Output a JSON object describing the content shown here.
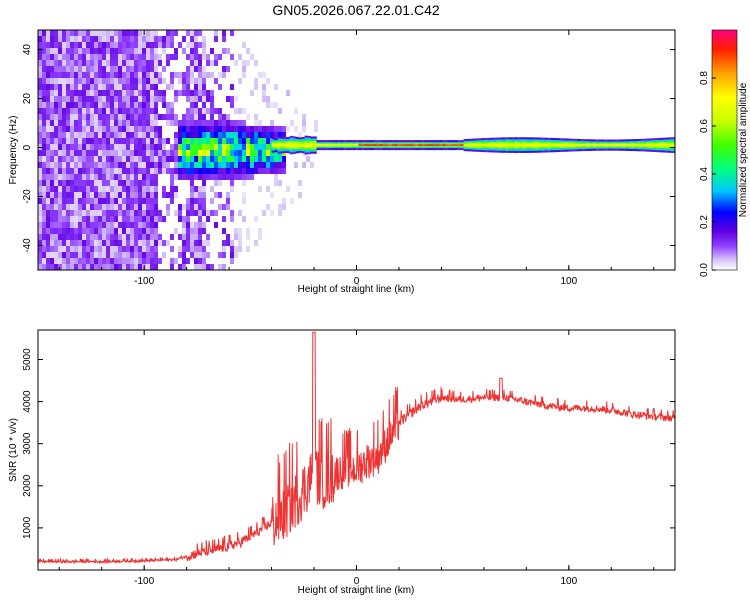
{
  "page": {
    "title": "GN05.2026.067.22.01.C42"
  },
  "chart_data": [
    {
      "type": "heatmap",
      "title": "GN05.2026.067.22.01.C42",
      "xlabel": "Height of straight line (km)",
      "ylabel": "Frequency (Hz)",
      "xlim": [
        -150,
        150
      ],
      "ylim": [
        -50,
        48
      ],
      "xticks": [
        -100,
        0,
        100
      ],
      "xtick_labels": [
        "-100",
        "0",
        "100"
      ],
      "yticks": [
        -40,
        -20,
        0,
        20,
        40
      ],
      "ytick_labels": [
        "-40",
        "-20",
        "0",
        "20",
        "40"
      ],
      "colorbar": {
        "label": "Normalized spectral amplitude",
        "range": [
          0,
          1
        ],
        "ticks": [
          0.0,
          0.2,
          0.4,
          0.6,
          0.8
        ],
        "tick_labels": [
          "0.0",
          "0.2",
          "0.4",
          "0.6",
          "0.8"
        ],
        "colors": [
          "#ffffff",
          "#d8c8f8",
          "#9040ff",
          "#6000e0",
          "#0000ff",
          "#00c8ff",
          "#00ff80",
          "#40ff00",
          "#c8ff00",
          "#ffff00",
          "#ffa000",
          "#ff2000",
          "#ff0080"
        ]
      },
      "regions": [
        {
          "name": "broadband noise",
          "x_range": [
            -150,
            -58
          ],
          "freq_range": [
            -50,
            48
          ],
          "amplitude": 0.15
        },
        {
          "name": "onset",
          "x_range": [
            -85,
            -35
          ],
          "freq_range": [
            -12,
            12
          ],
          "amplitude": 0.45
        },
        {
          "name": "narrow line",
          "x_range": [
            -35,
            150
          ],
          "freq_center": 1,
          "amplitude": 0.9
        }
      ]
    },
    {
      "type": "line",
      "xlabel": "Height of straight line (km)",
      "ylabel": "SNR (10 * v/v)",
      "xlim": [
        -150,
        150
      ],
      "ylim": [
        0,
        5700
      ],
      "xticks": [
        -100,
        0,
        100
      ],
      "xtick_labels": [
        "-100",
        "0",
        "100"
      ],
      "yticks": [
        1000,
        2000,
        3000,
        4000,
        5000
      ],
      "ytick_labels": [
        "1000",
        "2000",
        "3000",
        "4000",
        "5000"
      ],
      "series": [
        {
          "name": "SNR",
          "color": "#ee3333",
          "x": [
            -150,
            -120,
            -100,
            -85,
            -75,
            -65,
            -55,
            -45,
            -35,
            -25,
            -20,
            -15,
            -10,
            -5,
            0,
            5,
            10,
            15,
            20,
            30,
            40,
            50,
            60,
            70,
            80,
            90,
            100,
            110,
            120,
            130,
            140,
            150
          ],
          "values": [
            200,
            200,
            220,
            250,
            400,
            500,
            650,
            950,
            1300,
            1900,
            2300,
            2100,
            2300,
            2400,
            2400,
            2600,
            2700,
            3100,
            3500,
            3900,
            4100,
            4050,
            4100,
            4100,
            4000,
            3900,
            3850,
            3850,
            3800,
            3700,
            3650,
            3600
          ]
        }
      ]
    }
  ]
}
